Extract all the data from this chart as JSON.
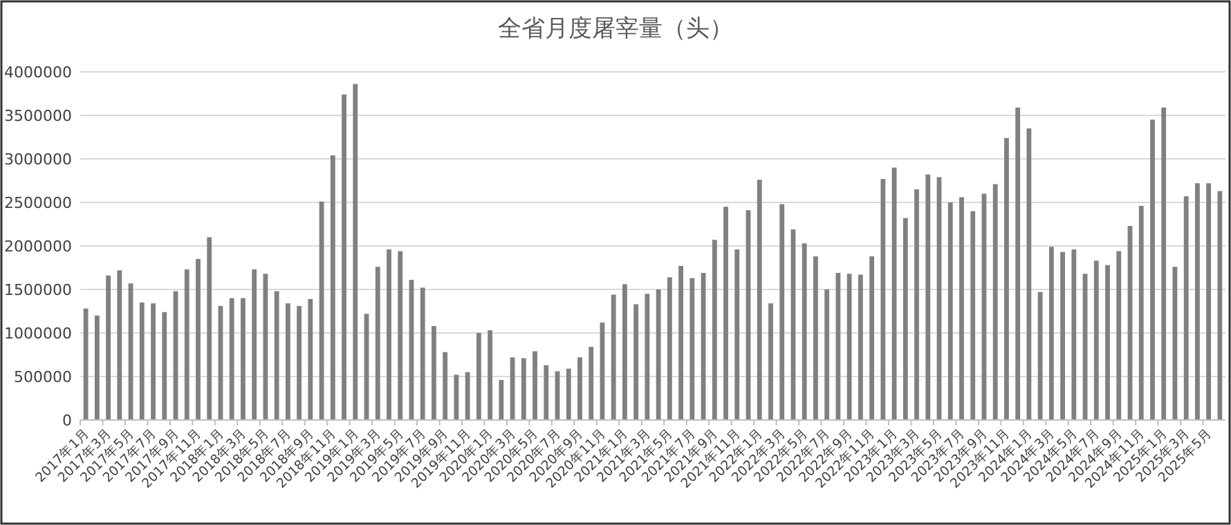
{
  "chart_data": {
    "type": "bar",
    "title": "全省月度屠宰量（头）",
    "categories": [
      "2017年1月",
      null,
      "2017年3月",
      null,
      "2017年5月",
      null,
      "2017年7月",
      null,
      "2017年9月",
      null,
      "2017年11月",
      null,
      "2018年1月",
      null,
      "2018年3月",
      null,
      "2018年5月",
      null,
      "2018年7月",
      null,
      "2018年9月",
      null,
      "2018年11月",
      null,
      "2019年1月",
      null,
      "2019年3月",
      null,
      "2019年5月",
      null,
      "2019年7月",
      null,
      "2019年9月",
      null,
      "2019年11月",
      null,
      "2020年1月",
      null,
      "2020年3月",
      null,
      "2020年5月",
      null,
      "2020年7月",
      null,
      "2020年9月",
      null,
      "2020年11月",
      null,
      "2021年1月",
      null,
      "2021年3月",
      null,
      "2021年5月",
      null,
      "2021年7月",
      null,
      "2021年9月",
      null,
      "2021年11月",
      null,
      "2022年1月",
      null,
      "2022年3月",
      null,
      "2022年5月",
      null,
      "2022年7月",
      null,
      "2022年9月",
      null,
      "2022年11月",
      null,
      "2023年1月",
      null,
      "2023年3月",
      null,
      "2023年5月",
      null,
      "2023年7月",
      null,
      "2023年9月",
      null,
      "2023年11月",
      null,
      "2024年1月",
      null,
      "2024年3月",
      null,
      "2024年5月",
      null,
      "2024年7月",
      null,
      "2024年9月",
      null,
      "2024年11月",
      null,
      "2025年1月",
      null,
      "2025年3月",
      null,
      "2025年5月",
      null
    ],
    "values": [
      1280000,
      1200000,
      1660000,
      1720000,
      1570000,
      1350000,
      1340000,
      1240000,
      1480000,
      1730000,
      1850000,
      2100000,
      1310000,
      1400000,
      1400000,
      1730000,
      1680000,
      1480000,
      1340000,
      1310000,
      1390000,
      2510000,
      3040000,
      3740000,
      3860000,
      1220000,
      1760000,
      1960000,
      1940000,
      1610000,
      1520000,
      1080000,
      780000,
      520000,
      550000,
      1000000,
      1030000,
      460000,
      720000,
      710000,
      790000,
      630000,
      560000,
      590000,
      720000,
      840000,
      1120000,
      1440000,
      1560000,
      1330000,
      1450000,
      1500000,
      1640000,
      1770000,
      1630000,
      1690000,
      2070000,
      2450000,
      1960000,
      2410000,
      2760000,
      1340000,
      2480000,
      2190000,
      2030000,
      1880000,
      1500000,
      1690000,
      1680000,
      1670000,
      1880000,
      2770000,
      2900000,
      2320000,
      2650000,
      2820000,
      2790000,
      2500000,
      2560000,
      2400000,
      2600000,
      2710000,
      3240000,
      3590000,
      3350000,
      1470000,
      1990000,
      1930000,
      1960000,
      1680000,
      1830000,
      1780000,
      1940000,
      2230000,
      2460000,
      3450000,
      3590000,
      1760000,
      2570000,
      2720000,
      2720000,
      2630000
    ],
    "color": "#808080",
    "ylim": [
      0,
      4000000
    ],
    "yticks": [
      0,
      500000,
      1000000,
      1500000,
      2000000,
      2500000,
      3000000,
      3500000,
      4000000
    ],
    "grid": "y"
  }
}
